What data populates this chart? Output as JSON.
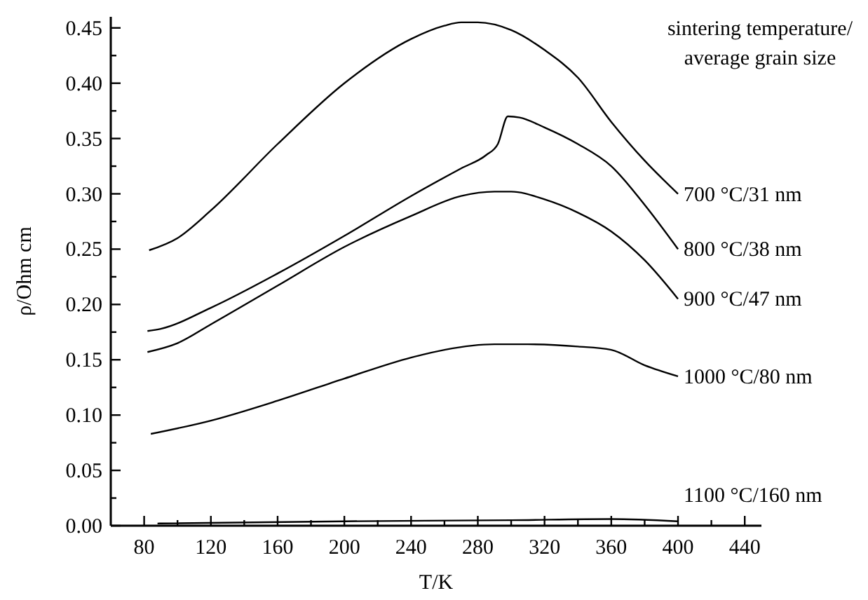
{
  "chart_data": {
    "type": "line",
    "xlabel": "T/K",
    "ylabel": "ρ/Ohm cm",
    "legend_title": "sintering temperature/\naverage grain size",
    "legend": false,
    "grid": false,
    "marker": "none",
    "line_style": "solid",
    "xlim": [
      60,
      450
    ],
    "ylim": [
      0,
      0.46
    ],
    "xticks": [
      80,
      {
        "value": 100,
        "label": null
      },
      120,
      {
        "value": 140,
        "label": null
      },
      160,
      {
        "value": 180,
        "label": null
      },
      200,
      {
        "value": 220,
        "label": null
      },
      240,
      {
        "value": 260,
        "label": null
      },
      280,
      {
        "value": 300,
        "label": null
      },
      320,
      {
        "value": 340,
        "label": null
      },
      360,
      {
        "value": 380,
        "label": null
      },
      400,
      {
        "value": 420,
        "label": null
      },
      440
    ],
    "yticks": [
      {
        "value": 0,
        "label": "0.00"
      },
      {
        "value": 0.025,
        "label": null
      },
      {
        "value": 0.05,
        "label": "0.05"
      },
      {
        "value": 0.075,
        "label": null
      },
      {
        "value": 0.1,
        "label": "0.10"
      },
      {
        "value": 0.125,
        "label": null
      },
      {
        "value": 0.15,
        "label": "0.15"
      },
      {
        "value": 0.175,
        "label": null
      },
      {
        "value": 0.2,
        "label": "0.20"
      },
      {
        "value": 0.225,
        "label": null
      },
      {
        "value": 0.25,
        "label": "0.25"
      },
      {
        "value": 0.275,
        "label": null
      },
      {
        "value": 0.3,
        "label": "0.30"
      },
      {
        "value": 0.325,
        "label": null
      },
      {
        "value": 0.35,
        "label": "0.35"
      },
      {
        "value": 0.375,
        "label": null
      },
      {
        "value": 0.4,
        "label": "0.40"
      },
      {
        "value": 0.425,
        "label": null
      },
      {
        "value": 0.45,
        "label": "0.45"
      }
    ],
    "series": [
      {
        "name": "700 °C/31 nm",
        "color": "#000000",
        "x": [
          83,
          100,
          120,
          160,
          200,
          240,
          260,
          270,
          280,
          300,
          320,
          340,
          360,
          380,
          400
        ],
        "values": [
          0.249,
          0.26,
          0.285,
          0.345,
          0.4,
          0.44,
          0.452,
          0.455,
          0.455,
          0.448,
          0.43,
          0.405,
          0.365,
          0.33,
          0.3
        ]
      },
      {
        "name": "800 °C/38 nm",
        "color": "#000000",
        "x": [
          82,
          90,
          120,
          160,
          200,
          240,
          270,
          285,
          292,
          298,
          305,
          320,
          340,
          360,
          380,
          400
        ],
        "values": [
          0.176,
          0.178,
          0.197,
          0.228,
          0.262,
          0.298,
          0.323,
          0.335,
          0.345,
          0.37,
          0.369,
          0.36,
          0.345,
          0.325,
          0.29,
          0.25
        ]
      },
      {
        "name": "900 °C/47 nm",
        "color": "#000000",
        "x": [
          82,
          100,
          120,
          160,
          200,
          240,
          270,
          290,
          300,
          320,
          340,
          360,
          380,
          400
        ],
        "values": [
          0.157,
          0.165,
          0.182,
          0.217,
          0.252,
          0.28,
          0.298,
          0.302,
          0.302,
          0.295,
          0.283,
          0.266,
          0.24,
          0.205
        ]
      },
      {
        "name": "1000 °C/80 nm",
        "color": "#000000",
        "x": [
          84,
          120,
          160,
          200,
          240,
          260,
          290,
          310,
          340,
          360,
          380,
          400
        ],
        "values": [
          0.083,
          0.095,
          0.113,
          0.133,
          0.152,
          0.159,
          0.164,
          0.164,
          0.162,
          0.159,
          0.145,
          0.135
        ]
      },
      {
        "name": "1100 °C/160 nm",
        "color": "#000000",
        "x": [
          88,
          200,
          300,
          360,
          400
        ],
        "values": [
          0.002,
          0.004,
          0.005,
          0.006,
          0.004
        ]
      }
    ]
  }
}
